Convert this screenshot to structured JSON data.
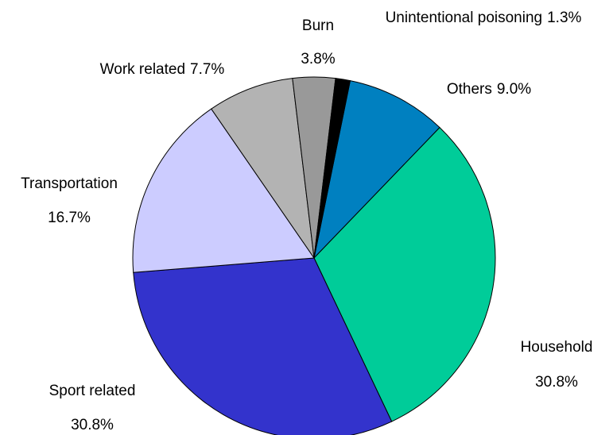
{
  "chart_data": {
    "type": "pie",
    "categories": [
      "Others",
      "Household",
      "Sport related",
      "Transportation",
      "Work related",
      "Burn",
      "Unintentional poisoning"
    ],
    "values": [
      9.0,
      30.8,
      30.8,
      16.7,
      7.7,
      3.8,
      1.3
    ],
    "value_labels": [
      "9.0%",
      "30.8%",
      "30.8%",
      "16.7%",
      "7.7%",
      "3.8%",
      "1.3%"
    ],
    "colors": [
      "#0080c0",
      "#00cc99",
      "#3333cc",
      "#ccccff",
      "#b3b3b3",
      "#999999",
      "#000000"
    ]
  }
}
